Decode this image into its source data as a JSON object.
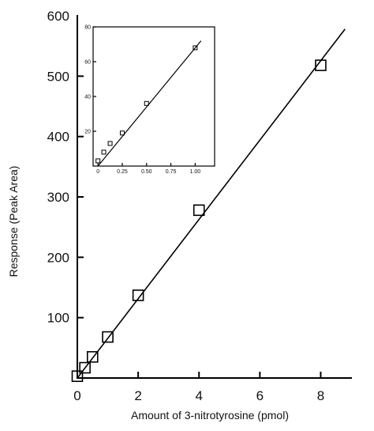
{
  "chart_data": [
    {
      "type": "scatter",
      "title": "",
      "xlabel": "Amount of 3-nitrotyrosine (pmol)",
      "ylabel": "Response (Peak Area)",
      "xlim": [
        0,
        9
      ],
      "ylim": [
        0,
        600
      ],
      "xticks": [
        0,
        2,
        4,
        6,
        8
      ],
      "yticks": [
        100,
        200,
        300,
        400,
        500,
        600
      ],
      "grid": false,
      "marker": "square",
      "points": [
        {
          "x": 0,
          "y": 3
        },
        {
          "x": 0.25,
          "y": 17
        },
        {
          "x": 0.5,
          "y": 35
        },
        {
          "x": 1,
          "y": 68
        },
        {
          "x": 2,
          "y": 137
        },
        {
          "x": 4,
          "y": 278
        },
        {
          "x": 8,
          "y": 518
        }
      ],
      "fit_line": {
        "x": [
          0,
          8.8
        ],
        "y": [
          0,
          578
        ]
      }
    },
    {
      "type": "scatter",
      "title": "",
      "xlim": [
        -0.05,
        1.2
      ],
      "ylim": [
        0,
        80
      ],
      "xticks": [
        0,
        0.25,
        0.5,
        0.75,
        1.0
      ],
      "xtick_labels": [
        "0",
        "0.25",
        "0.50",
        "0.75",
        "1.00"
      ],
      "yticks": [
        20,
        40,
        60,
        80
      ],
      "grid": false,
      "marker": "square",
      "points": [
        {
          "x": 0,
          "y": 3
        },
        {
          "x": 0.06,
          "y": 8
        },
        {
          "x": 0.125,
          "y": 13
        },
        {
          "x": 0.25,
          "y": 19
        },
        {
          "x": 0.5,
          "y": 36
        },
        {
          "x": 1.0,
          "y": 68
        }
      ],
      "fit_line": {
        "x": [
          0,
          1.06
        ],
        "y": [
          0,
          72
        ]
      }
    }
  ]
}
